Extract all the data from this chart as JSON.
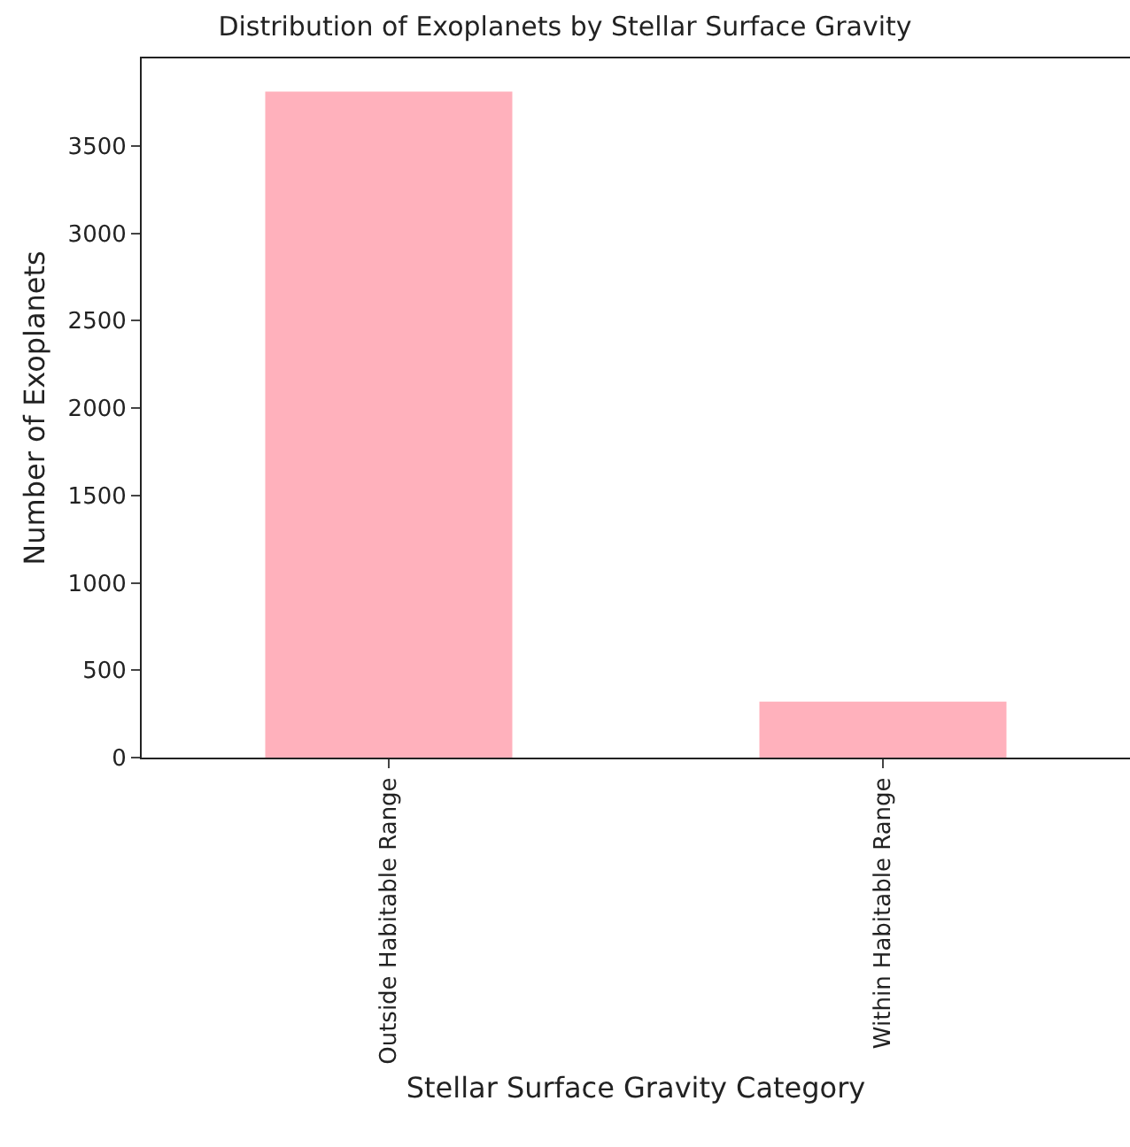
{
  "chart_data": {
    "type": "bar",
    "title": "Distribution of Exoplanets by Stellar Surface Gravity",
    "xlabel": "Stellar Surface Gravity Category",
    "ylabel": "Number of Exoplanets",
    "categories": [
      "Outside Habitable Range",
      "Within Habitable Range"
    ],
    "values": [
      3810,
      320
    ],
    "color": "#ffb1bc",
    "ylim": [
      0,
      4000
    ],
    "yticks": [
      0,
      500,
      1000,
      1500,
      2000,
      2500,
      3000,
      3500
    ]
  }
}
